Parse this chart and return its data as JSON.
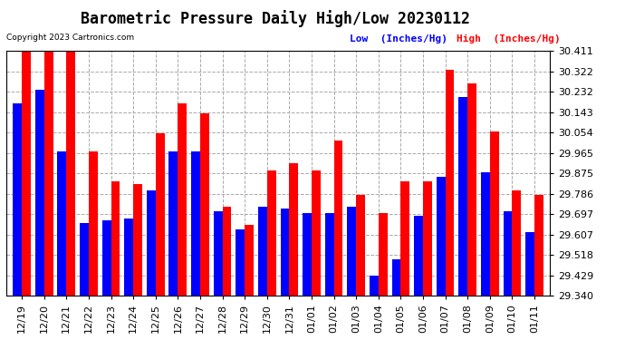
{
  "title": "Barometric Pressure Daily High/Low 20230112",
  "copyright": "Copyright 2023 Cartronics.com",
  "legend_low": "Low  (Inches/Hg)",
  "legend_high": "High  (Inches/Hg)",
  "categories": [
    "12/19",
    "12/20",
    "12/21",
    "12/22",
    "12/23",
    "12/24",
    "12/25",
    "12/26",
    "12/27",
    "12/28",
    "12/29",
    "12/30",
    "12/31",
    "01/01",
    "01/02",
    "01/03",
    "01/04",
    "01/05",
    "01/06",
    "01/07",
    "01/08",
    "01/09",
    "01/10",
    "01/11"
  ],
  "low_values": [
    30.18,
    30.24,
    29.97,
    29.66,
    29.67,
    29.68,
    29.8,
    29.97,
    29.97,
    29.71,
    29.63,
    29.73,
    29.72,
    29.7,
    29.7,
    29.73,
    29.43,
    29.5,
    29.69,
    29.86,
    30.21,
    29.88,
    29.71,
    29.62
  ],
  "high_values": [
    30.41,
    30.41,
    30.41,
    29.97,
    29.84,
    29.83,
    30.05,
    30.18,
    30.14,
    29.73,
    29.65,
    29.89,
    29.92,
    29.89,
    30.02,
    29.78,
    29.7,
    29.84,
    29.84,
    30.33,
    30.27,
    30.06,
    29.8,
    29.78
  ],
  "low_color": "#0000ff",
  "high_color": "#ff0000",
  "ylim_min": 29.34,
  "ylim_max": 30.411,
  "yticks": [
    29.34,
    29.429,
    29.518,
    29.607,
    29.697,
    29.786,
    29.875,
    29.965,
    30.054,
    30.143,
    30.232,
    30.322,
    30.411
  ],
  "bg_color": "#ffffff",
  "grid_color": "#aaaaaa",
  "title_fontsize": 12,
  "tick_fontsize": 8,
  "bar_width": 0.4
}
